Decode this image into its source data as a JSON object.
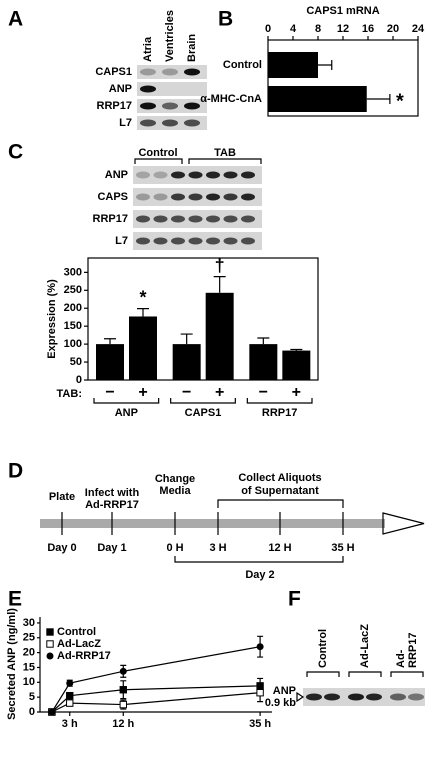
{
  "blot_a": {
    "panel": "A",
    "columns": [
      "Atria",
      "Ventricles",
      "Brain"
    ],
    "rows": [
      "CAPS1",
      "ANP",
      "RRP17",
      "L7"
    ]
  },
  "blot_c": {
    "panel": "C",
    "groups": [
      "Control",
      "TAB"
    ],
    "rows": [
      "ANP",
      "CAPS",
      "RRP17",
      "L7"
    ]
  },
  "timeline_d": {
    "panel": "D",
    "events": [
      {
        "text": [
          "Plate"
        ],
        "time": "Day 0"
      },
      {
        "text": [
          "Infect with",
          "Ad-RRP17"
        ],
        "time": "Day 1"
      },
      {
        "text": [
          "Change",
          "Media"
        ],
        "time": "0 H"
      },
      {
        "time": "3 H"
      },
      {
        "time": "12 H"
      },
      {
        "time": "35 H"
      }
    ],
    "collect": [
      "Collect Aliquots",
      "of Supernatant"
    ],
    "day": "Day 2"
  },
  "blot_f": {
    "panel": "F",
    "groups": [
      [
        "Control"
      ],
      [
        "Ad-LacZ"
      ],
      [
        "Ad-",
        "RRP17"
      ]
    ],
    "label": [
      "ANP",
      "0.9 kb"
    ]
  },
  "chart_data": [
    {
      "type": "hbar",
      "panel": "B",
      "title": "CAPS1 mRNA",
      "categories": [
        "Control",
        "α-MHC-CnA"
      ],
      "values": [
        8,
        15.8
      ],
      "errors": [
        2.2,
        3.7
      ],
      "significance": {
        "1": "*"
      },
      "color": "#000000",
      "xlim": [
        0,
        24
      ],
      "xticks": [
        0,
        4,
        8,
        12,
        16,
        20,
        24
      ]
    },
    {
      "type": "bar",
      "panel": "C",
      "ylabel": "Expression (%)",
      "categories": [
        "ANP",
        "CAPS1",
        "RRP17"
      ],
      "group_label": "TAB:",
      "series": [
        {
          "name": "−",
          "values": [
            100,
            100,
            100
          ],
          "errors": [
            15,
            28,
            17
          ]
        },
        {
          "name": "+",
          "values": [
            177,
            243,
            82
          ],
          "errors": [
            22,
            45,
            3
          ],
          "significance": {
            "0": "*",
            "1": "†"
          }
        }
      ],
      "color": "#000000",
      "ylim": [
        0,
        340
      ],
      "yticks": [
        0,
        50,
        100,
        150,
        200,
        250,
        300
      ]
    },
    {
      "type": "line",
      "panel": "E",
      "ylabel": "Secreted ANP (ng/ml)",
      "x": [
        0,
        3,
        12,
        35
      ],
      "series": [
        {
          "name": "Control",
          "marker": "square",
          "values": [
            0,
            5.5,
            7.5,
            8.8
          ],
          "errors": [
            0.3,
            1,
            3,
            2.5
          ]
        },
        {
          "name": "Ad-LacZ",
          "marker": "open-square",
          "values": [
            0,
            3,
            2.5,
            6.5
          ],
          "errors": [
            0.3,
            1,
            1.5,
            3
          ]
        },
        {
          "name": "Ad-RRP17",
          "marker": "circle",
          "values": [
            0,
            9.7,
            13.7,
            22
          ],
          "errors": [
            0.3,
            1,
            2,
            3.5
          ]
        }
      ],
      "color": "#000000",
      "xlim": [
        -2,
        37
      ],
      "xticks": [
        {
          "value": 3,
          "label": "3 h"
        },
        {
          "value": 12,
          "label": "12 h"
        },
        {
          "value": 35,
          "label": "35 h"
        }
      ],
      "ylim": [
        0,
        32
      ],
      "yticks": [
        0,
        5,
        10,
        15,
        20,
        25,
        30
      ],
      "legend": "upper-left"
    }
  ]
}
